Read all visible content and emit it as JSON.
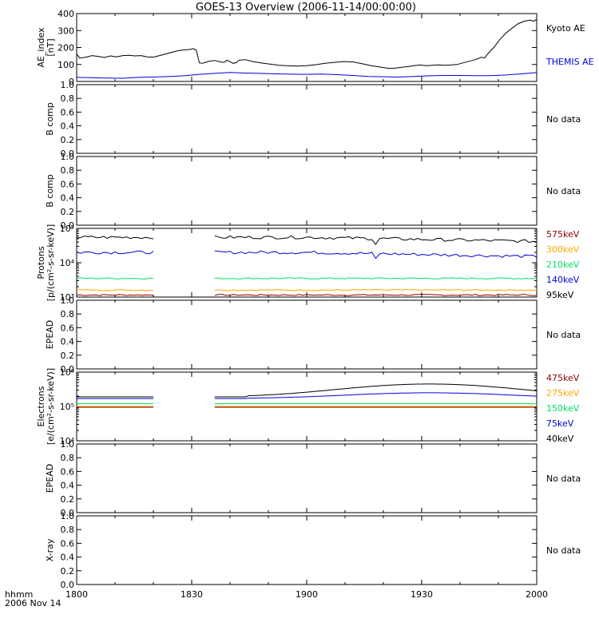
{
  "title": "GOES-13 Overview (2006-11-14/00:00:00)",
  "footer": {
    "time_label": "hhmm",
    "date_label": "2006 Nov 14"
  },
  "x_axis": {
    "ticks": [
      "1800",
      "1830",
      "1900",
      "1930",
      "2000"
    ]
  },
  "chart_data": [
    {
      "type": "line",
      "id": "ae",
      "ylabel": [
        "AE_index",
        "[nT]"
      ],
      "yticks": [
        "0",
        "100",
        "200",
        "300",
        "400"
      ],
      "ylim": [
        0,
        420
      ],
      "yscale": "linear",
      "x_range": [
        "18:00",
        "20:00"
      ],
      "series": [
        {
          "name": "Kyoto AE",
          "color": "#000000",
          "points": [
            [
              0,
              170
            ],
            [
              1,
              145
            ],
            [
              3,
              150
            ],
            [
              5,
              160
            ],
            [
              7,
              155
            ],
            [
              9,
              148
            ],
            [
              11,
              158
            ],
            [
              13,
              152
            ],
            [
              15,
              160
            ],
            [
              17,
              162
            ],
            [
              19,
              158
            ],
            [
              21,
              160
            ],
            [
              23,
              152
            ],
            [
              25,
              150
            ],
            [
              27,
              160
            ],
            [
              29,
              170
            ],
            [
              31,
              180
            ],
            [
              33,
              190
            ],
            [
              35,
              195
            ],
            [
              37,
              198
            ],
            [
              38,
              203
            ],
            [
              39,
              193
            ],
            [
              40,
              115
            ],
            [
              41,
              112
            ],
            [
              42,
              118
            ],
            [
              43,
              124
            ],
            [
              45,
              130
            ],
            [
              47,
              120
            ],
            [
              48,
              118
            ],
            [
              49,
              131
            ],
            [
              50,
              122
            ],
            [
              51,
              112
            ],
            [
              52,
              116
            ],
            [
              53,
              132
            ],
            [
              55,
              135
            ],
            [
              57,
              125
            ],
            [
              60,
              115
            ],
            [
              63,
              107
            ],
            [
              66,
              100
            ],
            [
              69,
              97
            ],
            [
              72,
              95
            ],
            [
              75,
              98
            ],
            [
              78,
              104
            ],
            [
              81,
              112
            ],
            [
              84,
              118
            ],
            [
              87,
              123
            ],
            [
              90,
              121
            ],
            [
              93,
              110
            ],
            [
              96,
              98
            ],
            [
              98,
              92
            ],
            [
              100,
              86
            ],
            [
              102,
              80
            ],
            [
              104,
              83
            ],
            [
              106,
              88
            ],
            [
              108,
              92
            ],
            [
              110,
              98
            ],
            [
              112,
              102
            ],
            [
              114,
              98
            ],
            [
              116,
              100
            ],
            [
              118,
              103
            ],
            [
              120,
              100
            ],
            [
              122,
              102
            ],
            [
              124,
              105
            ],
            [
              126,
              115
            ],
            [
              128,
              125
            ],
            [
              130,
              135
            ],
            [
              132,
              150
            ],
            [
              133,
              145
            ],
            [
              134,
              170
            ],
            [
              136,
              210
            ],
            [
              138,
              260
            ],
            [
              140,
              300
            ],
            [
              142,
              330
            ],
            [
              144,
              358
            ],
            [
              146,
              373
            ],
            [
              148,
              380
            ],
            [
              149,
              372
            ],
            [
              150,
              385
            ]
          ]
        },
        {
          "name": "THEMIS AE",
          "color": "#0000d8",
          "points": [
            [
              0,
              25
            ],
            [
              5,
              23
            ],
            [
              10,
              21
            ],
            [
              15,
              20
            ],
            [
              20,
              25
            ],
            [
              25,
              27
            ],
            [
              30,
              30
            ],
            [
              35,
              35
            ],
            [
              40,
              44
            ],
            [
              45,
              50
            ],
            [
              50,
              56
            ],
            [
              55,
              52
            ],
            [
              60,
              50
            ],
            [
              65,
              47
            ],
            [
              70,
              45
            ],
            [
              75,
              44
            ],
            [
              80,
              46
            ],
            [
              85,
              42
            ],
            [
              90,
              37
            ],
            [
              95,
              31
            ],
            [
              100,
              29
            ],
            [
              105,
              27
            ],
            [
              110,
              31
            ],
            [
              115,
              35
            ],
            [
              120,
              37
            ],
            [
              125,
              37
            ],
            [
              130,
              36
            ],
            [
              135,
              36
            ],
            [
              140,
              40
            ],
            [
              145,
              47
            ],
            [
              150,
              55
            ]
          ]
        }
      ]
    },
    {
      "type": "line",
      "id": "bcomp1",
      "ylabel": [
        "B comp"
      ],
      "yticks": [
        "0.0",
        "0.2",
        "0.4",
        "0.6",
        "0.8",
        "1.0"
      ],
      "ylim": [
        0,
        1
      ],
      "yscale": "linear",
      "message": "No data",
      "series": []
    },
    {
      "type": "line",
      "id": "bcomp2",
      "ylabel": [
        "B comp"
      ],
      "yticks": [
        "0.0",
        "0.2",
        "0.4",
        "0.6",
        "0.8",
        "1.0"
      ],
      "ylim": [
        0,
        1
      ],
      "yscale": "linear",
      "message": "No data",
      "series": []
    },
    {
      "type": "line",
      "id": "protons",
      "ylabel": [
        "Protons",
        "[p/(cm²-s-sr-keV)]"
      ],
      "yticks": [
        "10³",
        "10⁴",
        "10⁵"
      ],
      "ylim": [
        1000,
        100000
      ],
      "yscale": "log",
      "data_gap": [
        "18:20",
        "18:36"
      ],
      "series": [
        {
          "name": "575keV",
          "color": "#8b0000",
          "approx_value": 1150
        },
        {
          "name": "300keV",
          "color": "#ffa500",
          "approx_value": 1600
        },
        {
          "name": "210keV",
          "color": "#00e060",
          "approx_value": 3500
        },
        {
          "name": "140keV",
          "color": "#0000d8",
          "approx_value": 20000
        },
        {
          "name": "95keV",
          "color": "#000000",
          "approx_value": 55000
        }
      ]
    },
    {
      "type": "line",
      "id": "epead1",
      "ylabel": [
        "EPEAD"
      ],
      "yticks": [
        "0.0",
        "0.2",
        "0.4",
        "0.6",
        "0.8",
        "1.0"
      ],
      "ylim": [
        0,
        1
      ],
      "yscale": "linear",
      "message": "No data",
      "series": []
    },
    {
      "type": "line",
      "id": "electrons",
      "ylabel": [
        "Electrons",
        "[e/(cm²-s-sr-keV)]"
      ],
      "yticks": [
        "10⁴",
        "10⁵",
        "10⁶"
      ],
      "ylim": [
        10000,
        1000000
      ],
      "yscale": "log",
      "data_gap": [
        "18:20",
        "18:36"
      ],
      "series": [
        {
          "name": "475keV",
          "color": "#8b0000",
          "approx_value": 95000
        },
        {
          "name": "275keV",
          "color": "#ffa500",
          "approx_value": 100000
        },
        {
          "name": "150keV",
          "color": "#00e060",
          "approx_value": 120000
        },
        {
          "name": "75keV",
          "color": "#0000d8",
          "approx_value": 170000,
          "peak": 250000
        },
        {
          "name": "40keV",
          "color": "#000000",
          "approx_value": 190000,
          "peak": 450000
        }
      ]
    },
    {
      "type": "line",
      "id": "epead2",
      "ylabel": [
        "EPEAD"
      ],
      "yticks": [
        "0.0",
        "0.2",
        "0.4",
        "0.6",
        "0.8",
        "1.0"
      ],
      "ylim": [
        0,
        1
      ],
      "yscale": "linear",
      "message": "No data",
      "series": []
    },
    {
      "type": "line",
      "id": "xray",
      "ylabel": [
        "X-ray"
      ],
      "yticks": [
        "0.0",
        "0.2",
        "0.4",
        "0.6",
        "0.8",
        "1.0"
      ],
      "ylim": [
        0,
        1
      ],
      "yscale": "linear",
      "message": "No data",
      "series": []
    }
  ]
}
